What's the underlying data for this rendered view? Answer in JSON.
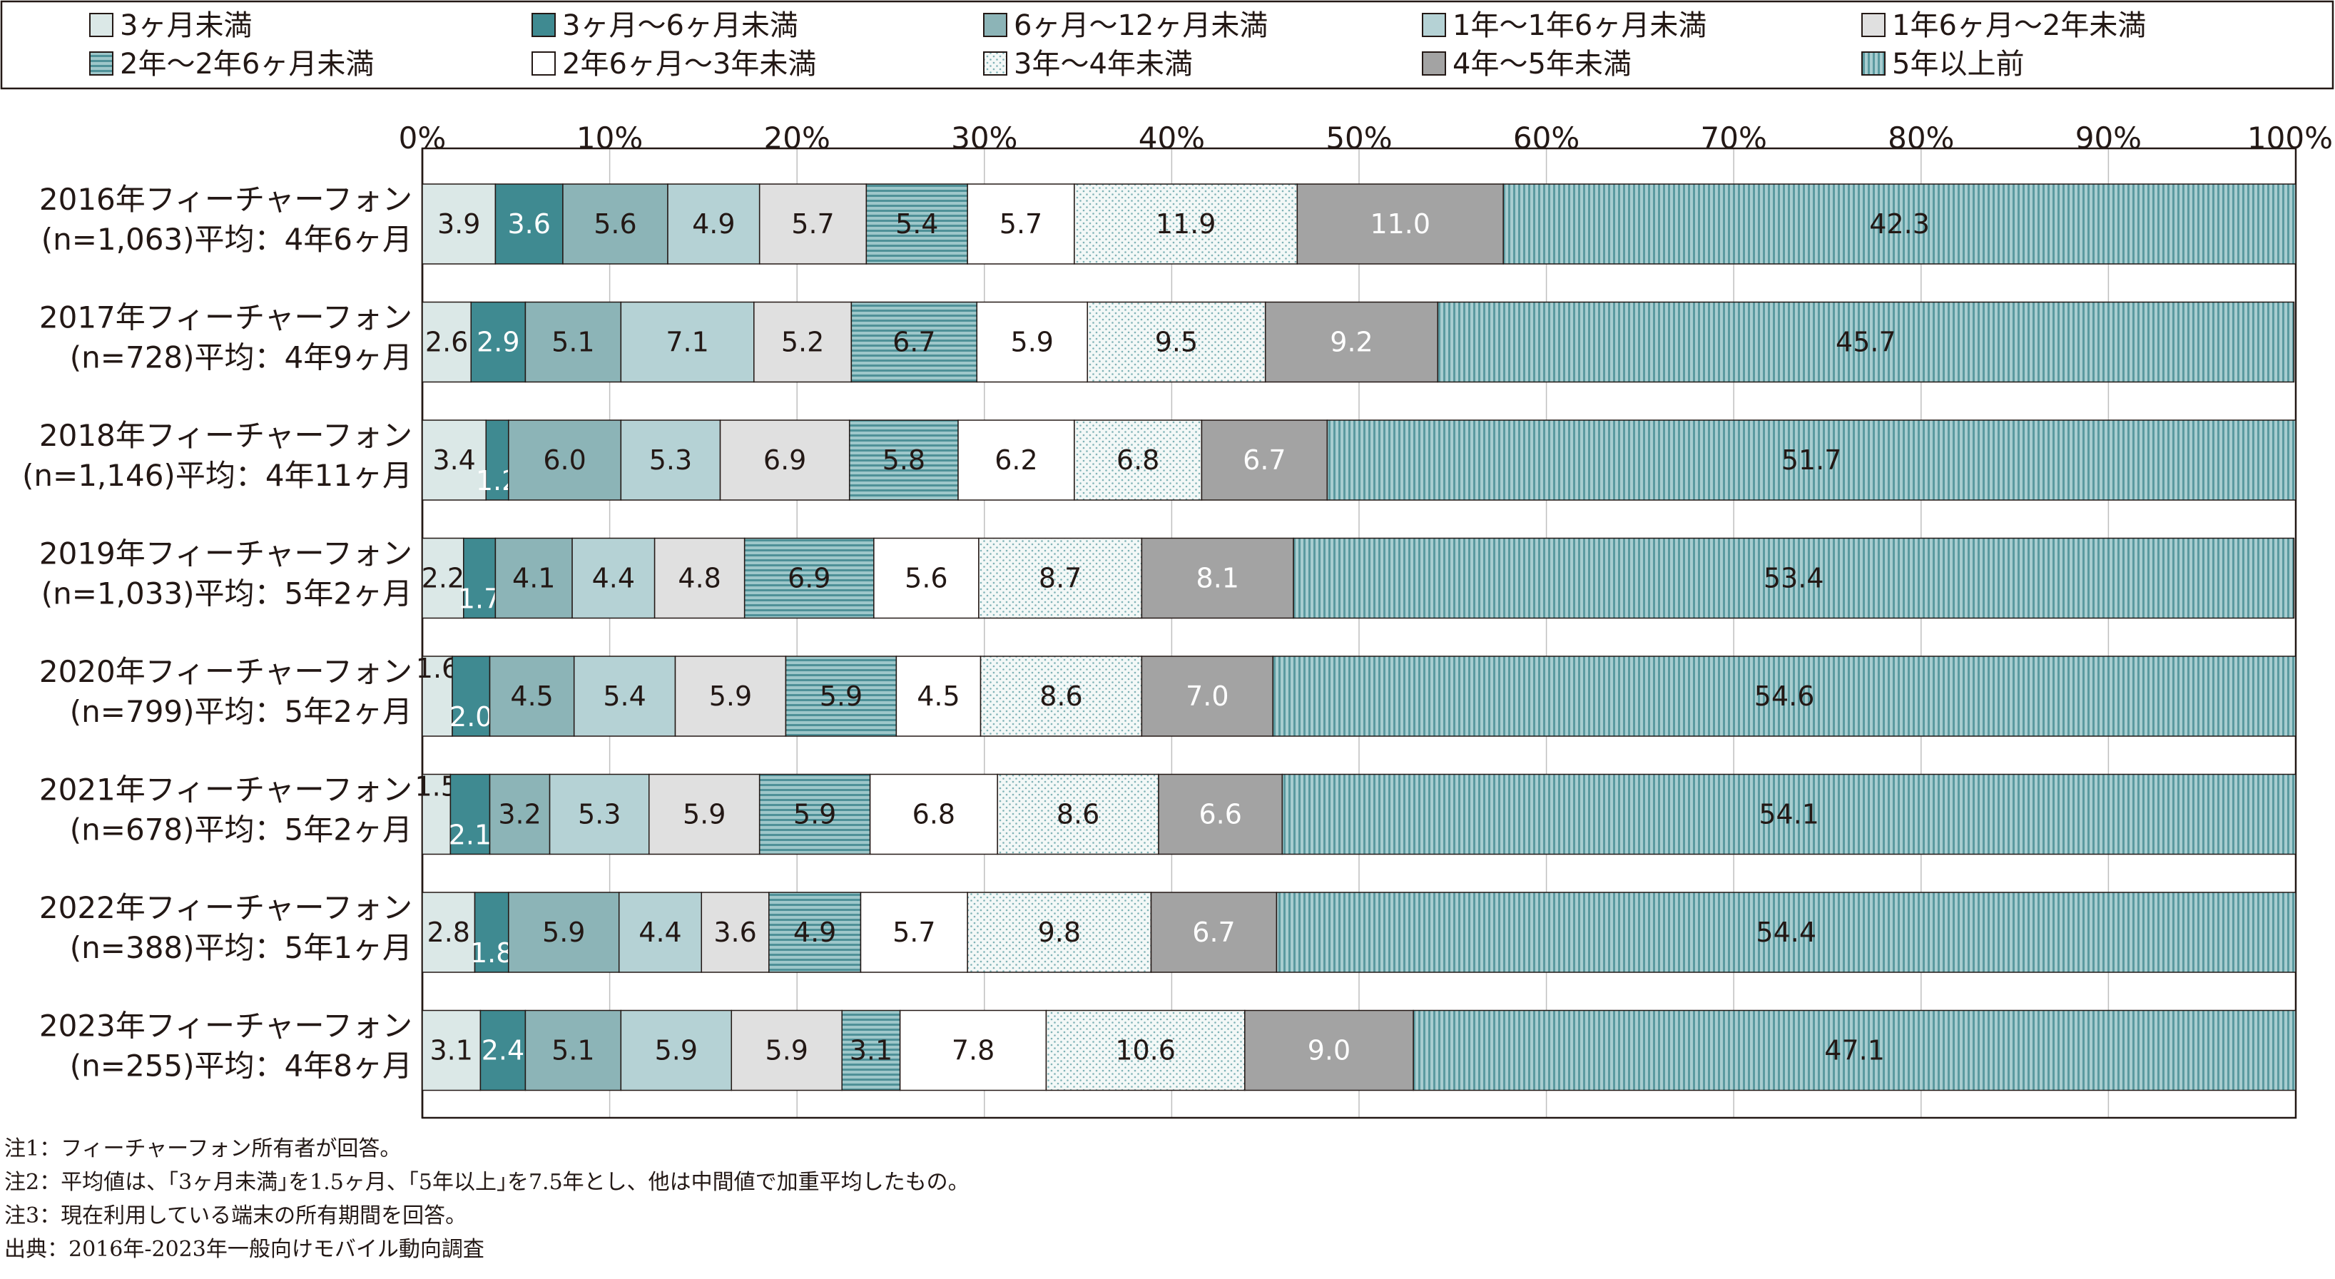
{
  "colors": {
    "lt3m": "#dbe8e7",
    "m3to6": "#3f8a91",
    "m6to12": "#8cb4b7",
    "y1to1_5": "#b5d2d5",
    "y1_5to2": "#e0e0e0",
    "y2to2_5": "#7fb2b6",
    "y2_5to3": "#ffffff",
    "y3to4": "#f1f7f6",
    "y4to5": "#a3a3a3",
    "y5plus": "#7fb2b6",
    "frame": "#231815"
  },
  "chart_data": {
    "type": "bar",
    "orientation": "horizontal",
    "stacked": true,
    "percent_axis": true,
    "xlim": [
      0,
      100
    ],
    "x_ticks": [
      "0%",
      "10%",
      "20%",
      "30%",
      "40%",
      "50%",
      "60%",
      "70%",
      "80%",
      "90%",
      "100%"
    ],
    "grid": true,
    "legend_position": "top",
    "categories": [
      [
        "2016年フィーチャーフォン",
        "(n=1,063)平均：4年6ヶ月"
      ],
      [
        "2017年フィーチャーフォン",
        "(n=728)平均：4年9ヶ月"
      ],
      [
        "2018年フィーチャーフォン",
        "(n=1,146)平均：4年11ヶ月"
      ],
      [
        "2019年フィーチャーフォン",
        "(n=1,033)平均：5年2ヶ月"
      ],
      [
        "2020年フィーチャーフォン",
        "(n=799)平均：5年2ヶ月"
      ],
      [
        "2021年フィーチャーフォン",
        "(n=678)平均：5年2ヶ月"
      ],
      [
        "2022年フィーチャーフォン",
        "(n=388)平均：5年1ヶ月"
      ],
      [
        "2023年フィーチャーフォン",
        "(n=255)平均：4年8ヶ月"
      ]
    ],
    "series": [
      {
        "name": "3ヶ月未満",
        "key": "lt3m",
        "pattern": "solid",
        "values": [
          3.9,
          2.6,
          3.4,
          2.2,
          1.6,
          1.5,
          2.8,
          3.1
        ]
      },
      {
        "name": "3ヶ月〜6ヶ月未満",
        "key": "m3to6",
        "pattern": "solid",
        "values": [
          3.6,
          2.9,
          1.2,
          1.7,
          2.0,
          2.1,
          1.8,
          2.4
        ]
      },
      {
        "name": "6ヶ月〜12ヶ月未満",
        "key": "m6to12",
        "pattern": "solid",
        "values": [
          5.6,
          5.1,
          6.0,
          4.1,
          4.5,
          3.2,
          5.9,
          5.1
        ]
      },
      {
        "name": "1年〜1年6ヶ月未満",
        "key": "y1to1_5",
        "pattern": "solid",
        "values": [
          4.9,
          7.1,
          5.3,
          4.4,
          5.4,
          5.3,
          4.4,
          5.9
        ]
      },
      {
        "name": "1年6ヶ月〜2年未満",
        "key": "y1_5to2",
        "pattern": "solid",
        "values": [
          5.7,
          5.2,
          6.9,
          4.8,
          5.9,
          5.9,
          3.6,
          5.9
        ]
      },
      {
        "name": "2年〜2年6ヶ月未満",
        "key": "y2to2_5",
        "pattern": "hstripe",
        "values": [
          5.4,
          6.7,
          5.8,
          6.9,
          5.9,
          5.9,
          4.9,
          3.1
        ]
      },
      {
        "name": "2年6ヶ月〜3年未満",
        "key": "y2_5to3",
        "pattern": "solid",
        "values": [
          5.7,
          5.9,
          6.2,
          5.6,
          4.5,
          6.8,
          5.7,
          7.8
        ]
      },
      {
        "name": "3年〜4年未満",
        "key": "y3to4",
        "pattern": "dots",
        "values": [
          11.9,
          9.5,
          6.8,
          8.7,
          8.6,
          8.6,
          9.8,
          10.6
        ]
      },
      {
        "name": "4年〜5年未満",
        "key": "y4to5",
        "pattern": "solid",
        "values": [
          11.0,
          9.2,
          6.7,
          8.1,
          7.0,
          6.6,
          6.7,
          9.0
        ]
      },
      {
        "name": "5年以上前",
        "key": "y5plus",
        "pattern": "vstripe",
        "values": [
          42.3,
          45.7,
          51.7,
          53.4,
          54.6,
          54.1,
          54.4,
          47.1
        ]
      }
    ]
  },
  "notes": [
    "注1：フィーチャーフォン所有者が回答。",
    "注2：平均値は、｢3ヶ月未満｣を1.5ヶ月、｢5年以上｣を7.5年とし、他は中間値で加重平均したもの。",
    "注3：現在利用している端末の所有期間を回答。",
    "出典：2016年-2023年一般向けモバイル動向調査"
  ]
}
